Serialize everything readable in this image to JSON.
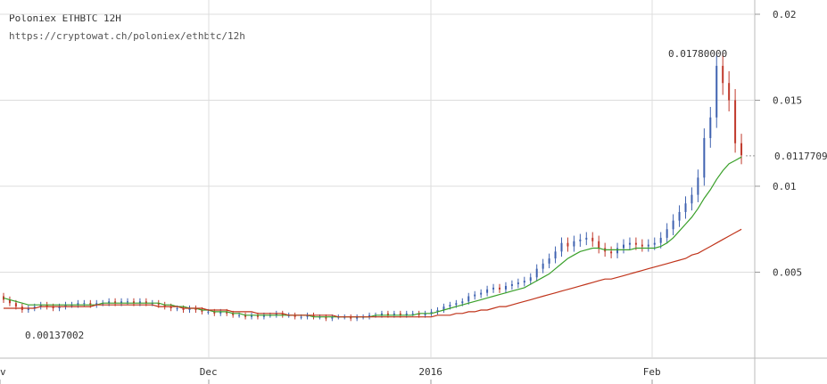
{
  "header": {
    "title": "Poloniex ETHBTC 12H",
    "url": "https://cryptowat.ch/poloniex/ethbtc/12h"
  },
  "colors": {
    "up_candle": "#3f62b0",
    "down_candle": "#c0392b",
    "ma_short": "#3aa02a",
    "ma_long": "#c0341b",
    "grid": "#dddddd"
  },
  "chart_data": {
    "type": "line",
    "title": "Poloniex ETHBTC 12H",
    "yaxis": {
      "ticks": [
        "0.005",
        "0.01",
        "0.015",
        "0.02"
      ],
      "tick_values": [
        0.005,
        0.01,
        0.015,
        0.02
      ],
      "ylim": [
        0.0,
        0.02
      ]
    },
    "xaxis": {
      "ticks": [
        "v",
        "Dec",
        "2016",
        "Feb"
      ]
    },
    "annotations": {
      "high": "0.01780000",
      "low": "0.00137002",
      "last": "0.0117709"
    },
    "series": [
      {
        "kind": "candles",
        "close": [
          0.0034,
          0.0032,
          0.003,
          0.0028,
          0.0029,
          0.003,
          0.0031,
          0.003,
          0.0029,
          0.003,
          0.0031,
          0.0031,
          0.0032,
          0.0032,
          0.0031,
          0.0032,
          0.0032,
          0.0033,
          0.0032,
          0.0033,
          0.0033,
          0.0032,
          0.0033,
          0.0032,
          0.0032,
          0.0031,
          0.003,
          0.0029,
          0.0029,
          0.0028,
          0.0029,
          0.0028,
          0.0027,
          0.0027,
          0.0026,
          0.0027,
          0.0026,
          0.0025,
          0.0025,
          0.0024,
          0.0025,
          0.0024,
          0.0025,
          0.0025,
          0.0026,
          0.0025,
          0.0025,
          0.0024,
          0.0024,
          0.0025,
          0.0024,
          0.0024,
          0.0023,
          0.0024,
          0.0024,
          0.0024,
          0.0023,
          0.0024,
          0.0024,
          0.0025,
          0.0025,
          0.0026,
          0.0025,
          0.0026,
          0.0025,
          0.0026,
          0.0026,
          0.0025,
          0.0026,
          0.0027,
          0.0028,
          0.003,
          0.0031,
          0.0032,
          0.0033,
          0.0036,
          0.0037,
          0.0038,
          0.004,
          0.0041,
          0.004,
          0.0042,
          0.0043,
          0.0044,
          0.0045,
          0.0047,
          0.0052,
          0.0055,
          0.0058,
          0.0062,
          0.0067,
          0.0065,
          0.0068,
          0.0069,
          0.007,
          0.0068,
          0.0064,
          0.0062,
          0.0061,
          0.0064,
          0.0066,
          0.0067,
          0.0066,
          0.0065,
          0.0066,
          0.0067,
          0.007,
          0.0075,
          0.008,
          0.0085,
          0.009,
          0.0095,
          0.0105,
          0.0128,
          0.014,
          0.017,
          0.016,
          0.015,
          0.0125,
          0.0118
        ],
        "open": [
          0.0036,
          0.0034,
          0.0032,
          0.003,
          0.0028,
          0.0029,
          0.003,
          0.0031,
          0.003,
          0.0029,
          0.003,
          0.0031,
          0.0031,
          0.0032,
          0.0032,
          0.0031,
          0.0032,
          0.0032,
          0.0033,
          0.0032,
          0.0033,
          0.0033,
          0.0032,
          0.0033,
          0.0032,
          0.0032,
          0.0031,
          0.003,
          0.0029,
          0.0029,
          0.0028,
          0.0029,
          0.0028,
          0.0027,
          0.0027,
          0.0026,
          0.0027,
          0.0026,
          0.0025,
          0.0025,
          0.0024,
          0.0025,
          0.0024,
          0.0025,
          0.0025,
          0.0026,
          0.0025,
          0.0025,
          0.0024,
          0.0024,
          0.0025,
          0.0024,
          0.0024,
          0.0023,
          0.0024,
          0.0024,
          0.0024,
          0.0023,
          0.0024,
          0.0024,
          0.0025,
          0.0025,
          0.0026,
          0.0025,
          0.0026,
          0.0025,
          0.0026,
          0.0026,
          0.0025,
          0.0026,
          0.0027,
          0.0028,
          0.003,
          0.0031,
          0.0032,
          0.0033,
          0.0036,
          0.0037,
          0.0038,
          0.004,
          0.0041,
          0.004,
          0.0042,
          0.0043,
          0.0044,
          0.0045,
          0.0047,
          0.0052,
          0.0055,
          0.0058,
          0.0062,
          0.0067,
          0.0065,
          0.0068,
          0.0069,
          0.007,
          0.0068,
          0.0064,
          0.0062,
          0.0061,
          0.0064,
          0.0066,
          0.0067,
          0.0066,
          0.0065,
          0.0066,
          0.0067,
          0.007,
          0.0075,
          0.008,
          0.0085,
          0.009,
          0.0095,
          0.0105,
          0.0128,
          0.014,
          0.017,
          0.016,
          0.015,
          0.0125
        ]
      },
      {
        "kind": "ma_short",
        "values": [
          0.0035,
          0.0034,
          0.0033,
          0.0032,
          0.0031,
          0.0031,
          0.0031,
          0.0031,
          0.0031,
          0.0031,
          0.0031,
          0.0031,
          0.0031,
          0.0031,
          0.0031,
          0.0031,
          0.0032,
          0.0032,
          0.0032,
          0.0032,
          0.0032,
          0.0032,
          0.0032,
          0.0032,
          0.0032,
          0.0032,
          0.0031,
          0.0031,
          0.003,
          0.003,
          0.0029,
          0.0029,
          0.0028,
          0.0028,
          0.0027,
          0.0027,
          0.0027,
          0.0026,
          0.0026,
          0.0025,
          0.0025,
          0.0025,
          0.0025,
          0.0025,
          0.0025,
          0.0025,
          0.0025,
          0.0025,
          0.0025,
          0.0025,
          0.0024,
          0.0024,
          0.0024,
          0.0024,
          0.0024,
          0.0024,
          0.0024,
          0.0024,
          0.0024,
          0.0024,
          0.0025,
          0.0025,
          0.0025,
          0.0025,
          0.0025,
          0.0025,
          0.0025,
          0.0026,
          0.0026,
          0.0026,
          0.0027,
          0.0028,
          0.0029,
          0.003,
          0.0031,
          0.0032,
          0.0033,
          0.0034,
          0.0035,
          0.0036,
          0.0037,
          0.0038,
          0.0039,
          0.004,
          0.0041,
          0.0043,
          0.0045,
          0.0047,
          0.0049,
          0.0052,
          0.0055,
          0.0058,
          0.006,
          0.0062,
          0.0063,
          0.0064,
          0.0064,
          0.0063,
          0.0063,
          0.0063,
          0.0063,
          0.0063,
          0.0064,
          0.0064,
          0.0064,
          0.0064,
          0.0065,
          0.0067,
          0.007,
          0.0074,
          0.0078,
          0.0082,
          0.0087,
          0.0093,
          0.0098,
          0.0104,
          0.0109,
          0.0113,
          0.0115,
          0.0117
        ]
      },
      {
        "kind": "ma_long",
        "values": [
          0.0029,
          0.0029,
          0.0029,
          0.0029,
          0.0029,
          0.0029,
          0.003,
          0.003,
          0.003,
          0.003,
          0.003,
          0.003,
          0.003,
          0.003,
          0.003,
          0.0031,
          0.0031,
          0.0031,
          0.0031,
          0.0031,
          0.0031,
          0.0031,
          0.0031,
          0.0031,
          0.0031,
          0.003,
          0.003,
          0.003,
          0.003,
          0.0029,
          0.0029,
          0.0029,
          0.0029,
          0.0028,
          0.0028,
          0.0028,
          0.0028,
          0.0027,
          0.0027,
          0.0027,
          0.0027,
          0.0026,
          0.0026,
          0.0026,
          0.0026,
          0.0026,
          0.0025,
          0.0025,
          0.0025,
          0.0025,
          0.0025,
          0.0025,
          0.0025,
          0.0025,
          0.0024,
          0.0024,
          0.0024,
          0.0024,
          0.0024,
          0.0024,
          0.0024,
          0.0024,
          0.0024,
          0.0024,
          0.0024,
          0.0024,
          0.0024,
          0.0024,
          0.0024,
          0.0024,
          0.0025,
          0.0025,
          0.0025,
          0.0026,
          0.0026,
          0.0027,
          0.0027,
          0.0028,
          0.0028,
          0.0029,
          0.003,
          0.003,
          0.0031,
          0.0032,
          0.0033,
          0.0034,
          0.0035,
          0.0036,
          0.0037,
          0.0038,
          0.0039,
          0.004,
          0.0041,
          0.0042,
          0.0043,
          0.0044,
          0.0045,
          0.0046,
          0.0046,
          0.0047,
          0.0048,
          0.0049,
          0.005,
          0.0051,
          0.0052,
          0.0053,
          0.0054,
          0.0055,
          0.0056,
          0.0057,
          0.0058,
          0.006,
          0.0061,
          0.0063,
          0.0065,
          0.0067,
          0.0069,
          0.0071,
          0.0073,
          0.0075
        ]
      }
    ]
  }
}
